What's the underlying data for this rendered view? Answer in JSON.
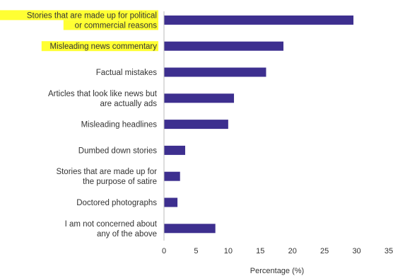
{
  "chart_data": {
    "type": "bar",
    "orientation": "horizontal",
    "title": "",
    "xlabel": "Percentage (%)",
    "ylabel": "",
    "xlim": [
      0,
      35
    ],
    "xticks": [
      "0",
      "5",
      "10",
      "15",
      "20",
      "25",
      "30",
      "35"
    ],
    "grid": false,
    "bar_color": "#3d2f8f",
    "highlight_color": "#ffff33",
    "categories": [
      {
        "lines": [
          "Stories that are made up for political",
          "or commercial reasons"
        ],
        "value": 29.5,
        "highlight": true
      },
      {
        "lines": [
          "Misleading news commentary"
        ],
        "value": 18.6,
        "highlight": true
      },
      {
        "lines": [
          "Factual mistakes"
        ],
        "value": 15.9,
        "highlight": false
      },
      {
        "lines": [
          "Articles that look like news but",
          "are actually ads"
        ],
        "value": 10.9,
        "highlight": false
      },
      {
        "lines": [
          "Misleading headlines"
        ],
        "value": 10.0,
        "highlight": false
      },
      {
        "lines": [
          "Dumbed down stories"
        ],
        "value": 3.3,
        "highlight": false
      },
      {
        "lines": [
          "Stories that are made up for",
          "the purpose of satire"
        ],
        "value": 2.5,
        "highlight": false
      },
      {
        "lines": [
          "Doctored photographs"
        ],
        "value": 2.1,
        "highlight": false
      },
      {
        "lines": [
          "I am not concerned about",
          "any of the above"
        ],
        "value": 8.0,
        "highlight": false
      }
    ]
  }
}
